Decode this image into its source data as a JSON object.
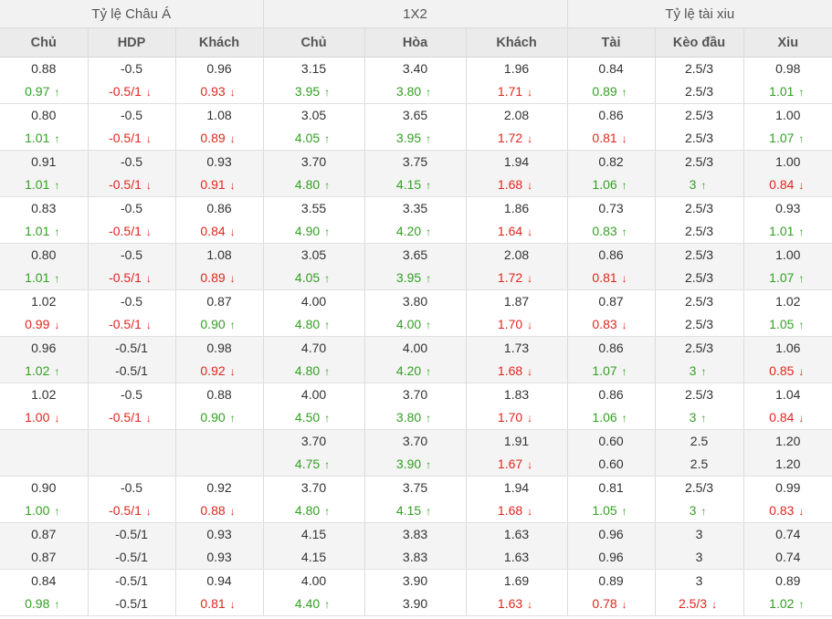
{
  "groups": [
    {
      "label": "Tỷ lệ Châu Á"
    },
    {
      "label": "1X2"
    },
    {
      "label": "Tỷ lệ tài xiu"
    }
  ],
  "columns": [
    {
      "label": "Chủ"
    },
    {
      "label": "HDP"
    },
    {
      "label": "Khách"
    },
    {
      "label": "Chủ"
    },
    {
      "label": "Hòa"
    },
    {
      "label": "Khách"
    },
    {
      "label": "Tài"
    },
    {
      "label": "Kèo đầu"
    },
    {
      "label": "Xiu"
    }
  ],
  "colors": {
    "up": "#32a022",
    "down": "#e0261e",
    "plain": "#333333"
  },
  "rows": [
    {
      "shade": false,
      "cells": [
        [
          "0.88",
          "",
          "0.97",
          "up"
        ],
        [
          "-0.5",
          "",
          "-0.5/1",
          "down"
        ],
        [
          "0.96",
          "",
          "0.93",
          "down"
        ],
        [
          "3.15",
          "",
          "3.95",
          "up"
        ],
        [
          "3.40",
          "",
          "3.80",
          "up"
        ],
        [
          "1.96",
          "",
          "1.71",
          "down"
        ],
        [
          "0.84",
          "",
          "0.89",
          "up"
        ],
        [
          "2.5/3",
          "",
          "2.5/3",
          ""
        ],
        [
          "0.98",
          "",
          "1.01",
          "up"
        ]
      ]
    },
    {
      "shade": false,
      "cells": [
        [
          "0.80",
          "",
          "1.01",
          "up"
        ],
        [
          "-0.5",
          "",
          "-0.5/1",
          "down"
        ],
        [
          "1.08",
          "",
          "0.89",
          "down"
        ],
        [
          "3.05",
          "",
          "4.05",
          "up"
        ],
        [
          "3.65",
          "",
          "3.95",
          "up"
        ],
        [
          "2.08",
          "",
          "1.72",
          "down"
        ],
        [
          "0.86",
          "",
          "0.81",
          "down"
        ],
        [
          "2.5/3",
          "",
          "2.5/3",
          ""
        ],
        [
          "1.00",
          "",
          "1.07",
          "up"
        ]
      ]
    },
    {
      "shade": true,
      "cells": [
        [
          "0.91",
          "",
          "1.01",
          "up"
        ],
        [
          "-0.5",
          "",
          "-0.5/1",
          "down"
        ],
        [
          "0.93",
          "",
          "0.91",
          "down"
        ],
        [
          "3.70",
          "",
          "4.80",
          "up"
        ],
        [
          "3.75",
          "",
          "4.15",
          "up"
        ],
        [
          "1.94",
          "",
          "1.68",
          "down"
        ],
        [
          "0.82",
          "",
          "1.06",
          "up"
        ],
        [
          "2.5/3",
          "",
          "3",
          "up"
        ],
        [
          "1.00",
          "",
          "0.84",
          "down"
        ]
      ]
    },
    {
      "shade": false,
      "cells": [
        [
          "0.83",
          "",
          "1.01",
          "up"
        ],
        [
          "-0.5",
          "",
          "-0.5/1",
          "down"
        ],
        [
          "0.86",
          "",
          "0.84",
          "down"
        ],
        [
          "3.55",
          "",
          "4.90",
          "up"
        ],
        [
          "3.35",
          "",
          "4.20",
          "up"
        ],
        [
          "1.86",
          "",
          "1.64",
          "down"
        ],
        [
          "0.73",
          "",
          "0.83",
          "up"
        ],
        [
          "2.5/3",
          "",
          "2.5/3",
          ""
        ],
        [
          "0.93",
          "",
          "1.01",
          "up"
        ]
      ]
    },
    {
      "shade": true,
      "cells": [
        [
          "0.80",
          "",
          "1.01",
          "up"
        ],
        [
          "-0.5",
          "",
          "-0.5/1",
          "down"
        ],
        [
          "1.08",
          "",
          "0.89",
          "down"
        ],
        [
          "3.05",
          "",
          "4.05",
          "up"
        ],
        [
          "3.65",
          "",
          "3.95",
          "up"
        ],
        [
          "2.08",
          "",
          "1.72",
          "down"
        ],
        [
          "0.86",
          "",
          "0.81",
          "down"
        ],
        [
          "2.5/3",
          "",
          "2.5/3",
          ""
        ],
        [
          "1.00",
          "",
          "1.07",
          "up"
        ]
      ]
    },
    {
      "shade": false,
      "cells": [
        [
          "1.02",
          "",
          "0.99",
          "down"
        ],
        [
          "-0.5",
          "",
          "-0.5/1",
          "down"
        ],
        [
          "0.87",
          "",
          "0.90",
          "up"
        ],
        [
          "4.00",
          "",
          "4.80",
          "up"
        ],
        [
          "3.80",
          "",
          "4.00",
          "up"
        ],
        [
          "1.87",
          "",
          "1.70",
          "down"
        ],
        [
          "0.87",
          "",
          "0.83",
          "down"
        ],
        [
          "2.5/3",
          "",
          "2.5/3",
          ""
        ],
        [
          "1.02",
          "",
          "1.05",
          "up"
        ]
      ]
    },
    {
      "shade": true,
      "cells": [
        [
          "0.96",
          "",
          "1.02",
          "up"
        ],
        [
          "-0.5/1",
          "",
          "-0.5/1",
          ""
        ],
        [
          "0.98",
          "",
          "0.92",
          "down"
        ],
        [
          "4.70",
          "",
          "4.80",
          "up"
        ],
        [
          "4.00",
          "",
          "4.20",
          "up"
        ],
        [
          "1.73",
          "",
          "1.68",
          "down"
        ],
        [
          "0.86",
          "",
          "1.07",
          "up"
        ],
        [
          "2.5/3",
          "",
          "3",
          "up"
        ],
        [
          "1.06",
          "",
          "0.85",
          "down"
        ]
      ]
    },
    {
      "shade": false,
      "cells": [
        [
          "1.02",
          "",
          "1.00",
          "down"
        ],
        [
          "-0.5",
          "",
          "-0.5/1",
          "down"
        ],
        [
          "0.88",
          "",
          "0.90",
          "up"
        ],
        [
          "4.00",
          "",
          "4.50",
          "up"
        ],
        [
          "3.70",
          "",
          "3.80",
          "up"
        ],
        [
          "1.83",
          "",
          "1.70",
          "down"
        ],
        [
          "0.86",
          "",
          "1.06",
          "up"
        ],
        [
          "2.5/3",
          "",
          "3",
          "up"
        ],
        [
          "1.04",
          "",
          "0.84",
          "down"
        ]
      ]
    },
    {
      "shade": true,
      "cells": [
        [
          "",
          "",
          "",
          ""
        ],
        [
          "",
          "",
          "",
          ""
        ],
        [
          "",
          "",
          "",
          ""
        ],
        [
          "3.70",
          "",
          "4.75",
          "up"
        ],
        [
          "3.70",
          "",
          "3.90",
          "up"
        ],
        [
          "1.91",
          "",
          "1.67",
          "down"
        ],
        [
          "0.60",
          "",
          "0.60",
          ""
        ],
        [
          "2.5",
          "",
          "2.5",
          ""
        ],
        [
          "1.20",
          "",
          "1.20",
          ""
        ]
      ]
    },
    {
      "shade": false,
      "cells": [
        [
          "0.90",
          "",
          "1.00",
          "up"
        ],
        [
          "-0.5",
          "",
          "-0.5/1",
          "down"
        ],
        [
          "0.92",
          "",
          "0.88",
          "down"
        ],
        [
          "3.70",
          "",
          "4.80",
          "up"
        ],
        [
          "3.75",
          "",
          "4.15",
          "up"
        ],
        [
          "1.94",
          "",
          "1.68",
          "down"
        ],
        [
          "0.81",
          "",
          "1.05",
          "up"
        ],
        [
          "2.5/3",
          "",
          "3",
          "up"
        ],
        [
          "0.99",
          "",
          "0.83",
          "down"
        ]
      ]
    },
    {
      "shade": true,
      "cells": [
        [
          "0.87",
          "",
          "0.87",
          ""
        ],
        [
          "-0.5/1",
          "",
          "-0.5/1",
          ""
        ],
        [
          "0.93",
          "",
          "0.93",
          ""
        ],
        [
          "4.15",
          "",
          "4.15",
          ""
        ],
        [
          "3.83",
          "",
          "3.83",
          ""
        ],
        [
          "1.63",
          "",
          "1.63",
          ""
        ],
        [
          "0.96",
          "",
          "0.96",
          ""
        ],
        [
          "3",
          "",
          "3",
          ""
        ],
        [
          "0.74",
          "",
          "0.74",
          ""
        ]
      ]
    },
    {
      "shade": false,
      "cells": [
        [
          "0.84",
          "",
          "0.98",
          "up"
        ],
        [
          "-0.5/1",
          "",
          "-0.5/1",
          ""
        ],
        [
          "0.94",
          "",
          "0.81",
          "down"
        ],
        [
          "4.00",
          "",
          "4.40",
          "up"
        ],
        [
          "3.90",
          "",
          "3.90",
          ""
        ],
        [
          "1.69",
          "",
          "1.63",
          "down"
        ],
        [
          "0.89",
          "",
          "0.78",
          "down"
        ],
        [
          "3",
          "",
          "2.5/3",
          "down"
        ],
        [
          "0.89",
          "",
          "1.02",
          "up"
        ]
      ]
    }
  ]
}
